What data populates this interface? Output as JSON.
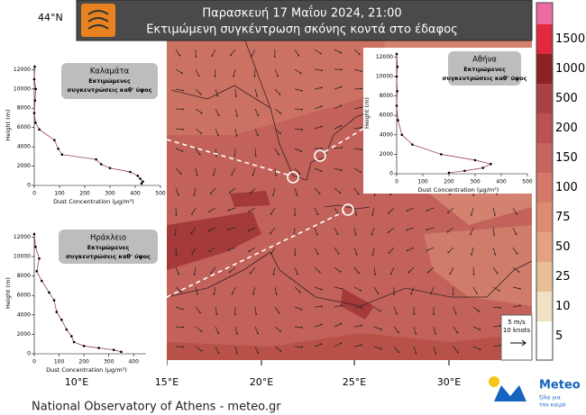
{
  "header": {
    "title": "Παρασκευή 17 Μαΐου 2024, 21:00",
    "subtitle": "Εκτιμώμενη συγκέντρωση σκόνης κοντά στο έδαφος"
  },
  "map": {
    "lat_label": "44°N",
    "lon_labels": [
      "10°E",
      "15°E",
      "20°E",
      "25°E",
      "30°E"
    ]
  },
  "colorbar": {
    "labels": [
      "1500",
      "1000",
      "500",
      "200",
      "150",
      "100",
      "75",
      "50",
      "25",
      "10",
      "5"
    ],
    "colors": [
      "#ee6aa2",
      "#e0283e",
      "#8c2222",
      "#a94242",
      "#b95250",
      "#c86460",
      "#d57868",
      "#dd8c72",
      "#e4a282",
      "#e9bf98",
      "#f2e2c4",
      "#ffffff"
    ]
  },
  "wind_legend": {
    "speed": "5 m/s",
    "knots": "10 knots"
  },
  "footer": "National Observatory of Athens - meteo.gr",
  "logo": {
    "name": "Meteo",
    "tagline": [
      "Όλα για",
      "τον καιρό"
    ]
  },
  "chart_data": [
    {
      "type": "line",
      "title": "Καλαμάτα",
      "subtitle_lines": [
        "Εκτιμώμενες",
        "συγκεντρώσεις καθ' ύψος"
      ],
      "x_label": "Dust Concentration (μg/m³)",
      "y_label": "Height (m)",
      "xlim": [
        0,
        500
      ],
      "xticks": [
        0,
        100,
        200,
        300,
        400,
        500
      ],
      "ylim": [
        0,
        12500
      ],
      "yticks": [
        0,
        2000,
        4000,
        6000,
        8000,
        10000,
        12000
      ],
      "color": "#8b2b3c",
      "series": [
        {
          "x": [
            425,
            430,
            420,
            410,
            380,
            300,
            265,
            245,
            110,
            95,
            80,
            20,
            5,
            0,
            3,
            6,
            0,
            2
          ],
          "values": [
            200,
            400,
            700,
            1000,
            1400,
            1800,
            2200,
            2700,
            3200,
            3800,
            4700,
            5800,
            6500,
            7500,
            8800,
            10000,
            11000,
            12300
          ]
        }
      ]
    },
    {
      "type": "line",
      "title": "Αθήνα",
      "subtitle_lines": [
        "Εκτιμώμενες",
        "συγκεντρώσεις καθ' ύψος"
      ],
      "x_label": "Dust Concentration (μg/m³)",
      "y_label": "Height (m)",
      "xlim": [
        0,
        500
      ],
      "xticks": [
        0,
        100,
        200,
        300,
        400,
        500
      ],
      "ylim": [
        0,
        12500
      ],
      "yticks": [
        0,
        2000,
        4000,
        6000,
        8000,
        10000,
        12000
      ],
      "color": "#8b2b3c",
      "series": [
        {
          "x": [
            200,
            260,
            330,
            360,
            300,
            170,
            60,
            20,
            5,
            0,
            2,
            0,
            3,
            0
          ],
          "values": [
            100,
            300,
            600,
            1000,
            1400,
            2000,
            3000,
            4000,
            5500,
            7000,
            8500,
            10000,
            11000,
            12300
          ]
        }
      ]
    },
    {
      "type": "line",
      "title": "Ηράκλειο",
      "subtitle_lines": [
        "Εκτιμώμενες",
        "συγκεντρώσεις καθ' ύψος"
      ],
      "x_label": "Dust Concentration (μg/m³)",
      "y_label": "Height (m)",
      "xlim": [
        0,
        450
      ],
      "xticks": [
        0,
        100,
        200,
        300,
        400
      ],
      "ylim": [
        0,
        12500
      ],
      "yticks": [
        0,
        2000,
        4000,
        6000,
        8000,
        10000,
        12000
      ],
      "color": "#8b2b3c",
      "series": [
        {
          "x": [
            350,
            320,
            260,
            200,
            160,
            150,
            130,
            110,
            90,
            80,
            60,
            30,
            10,
            20,
            5,
            0
          ],
          "values": [
            200,
            400,
            600,
            800,
            1200,
            1800,
            2500,
            3500,
            4300,
            5500,
            6300,
            7500,
            8500,
            9800,
            11000,
            12300
          ]
        }
      ]
    }
  ]
}
